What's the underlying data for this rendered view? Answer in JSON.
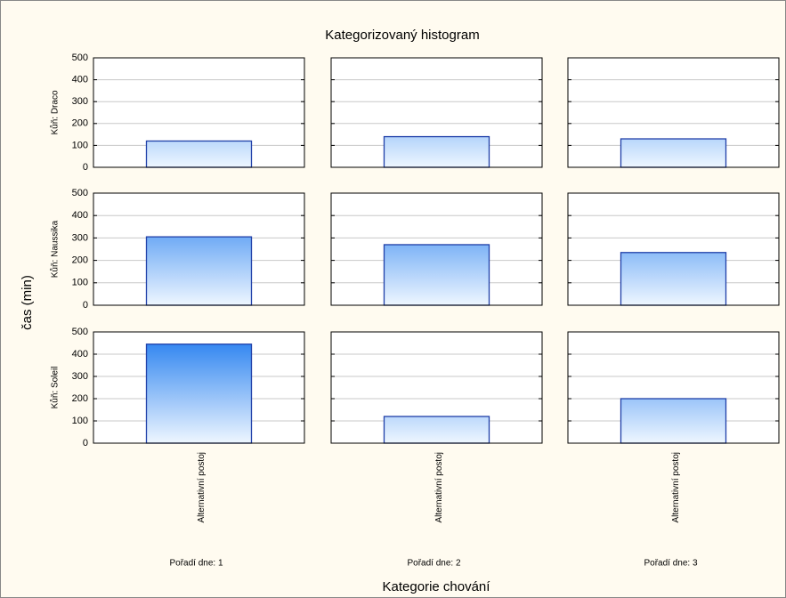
{
  "chart_data": {
    "type": "bar",
    "title": "Kategorizovaný histogram",
    "xlabel": "Kategorie chování",
    "ylabel": "čas (min)",
    "rows": [
      "Kůň: Draco",
      "Kůň: Naussika",
      "Kůň: Soleil"
    ],
    "columns": [
      "Pořadí dne: 1",
      "Pořadí dne: 2",
      "Pořadí dne: 3"
    ],
    "categories": [
      "Alternativní postoj"
    ],
    "values": [
      [
        120,
        140,
        130
      ],
      [
        305,
        270,
        235
      ],
      [
        445,
        120,
        200
      ]
    ],
    "color": "#1f7bef",
    "edgecolor": "#1f3fa8",
    "ylim": [
      0,
      500
    ],
    "yticks": [
      0,
      100,
      200,
      300,
      400,
      500
    ],
    "grid": true
  }
}
